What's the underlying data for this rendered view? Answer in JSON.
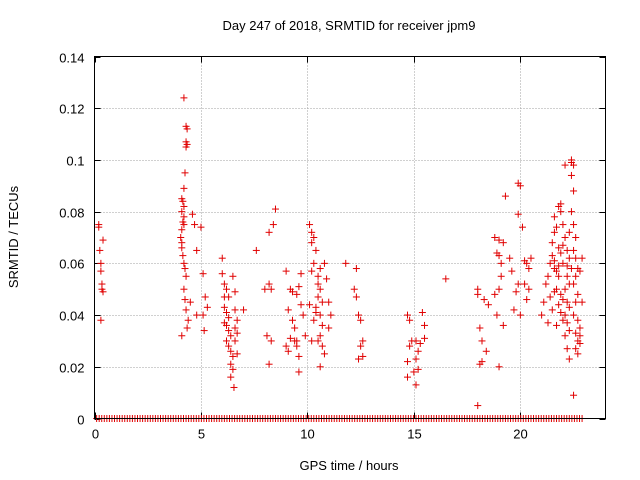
{
  "chart_data": {
    "type": "scatter",
    "title": "Day 247 of 2018, SRMTID for receiver jpm9",
    "xlabel": "GPS time / hours",
    "ylabel": "SRMTID / TECUs",
    "xlim": [
      0,
      24
    ],
    "ylim": [
      0,
      0.14
    ],
    "xticks": [
      0,
      5,
      10,
      15,
      20
    ],
    "xtick_labels": [
      "0",
      "5",
      "10",
      "15",
      "20"
    ],
    "yticks": [
      0,
      0.02,
      0.04,
      0.06,
      0.08,
      0.1,
      0.12,
      0.14
    ],
    "ytick_labels": [
      "0",
      "0.02",
      "0.04",
      "0.06",
      "0.08",
      "0.1",
      "0.12",
      "0.14"
    ],
    "grid": true,
    "marker": "plus",
    "color": "#e00000",
    "series": [
      {
        "name": "SRMTID",
        "points": [
          [
            0.2,
            0.074
          ],
          [
            0.25,
            0.065
          ],
          [
            0.3,
            0.06
          ],
          [
            0.3,
            0.057
          ],
          [
            0.35,
            0.052
          ],
          [
            0.35,
            0.05
          ],
          [
            0.4,
            0.049
          ],
          [
            0.4,
            0.069
          ],
          [
            0.3,
            0.038
          ],
          [
            0.2,
            0.075
          ],
          [
            4.2,
            0.124
          ],
          [
            4.3,
            0.113
          ],
          [
            4.35,
            0.112
          ],
          [
            4.3,
            0.107
          ],
          [
            4.35,
            0.106
          ],
          [
            4.3,
            0.105
          ],
          [
            4.25,
            0.095
          ],
          [
            4.2,
            0.089
          ],
          [
            4.1,
            0.085
          ],
          [
            4.15,
            0.084
          ],
          [
            4.2,
            0.082
          ],
          [
            4.1,
            0.08
          ],
          [
            4.2,
            0.078
          ],
          [
            4.15,
            0.076
          ],
          [
            4.2,
            0.075
          ],
          [
            4.1,
            0.073
          ],
          [
            4.05,
            0.07
          ],
          [
            4.1,
            0.068
          ],
          [
            4.1,
            0.066
          ],
          [
            4.15,
            0.063
          ],
          [
            4.2,
            0.06
          ],
          [
            4.25,
            0.058
          ],
          [
            4.3,
            0.055
          ],
          [
            4.2,
            0.05
          ],
          [
            4.25,
            0.046
          ],
          [
            4.3,
            0.042
          ],
          [
            4.4,
            0.038
          ],
          [
            4.35,
            0.035
          ],
          [
            4.1,
            0.032
          ],
          [
            4.5,
            0.045
          ],
          [
            4.6,
            0.079
          ],
          [
            4.7,
            0.075
          ],
          [
            5.0,
            0.074
          ],
          [
            4.8,
            0.065
          ],
          [
            5.1,
            0.056
          ],
          [
            5.2,
            0.047
          ],
          [
            5.3,
            0.043
          ],
          [
            5.1,
            0.04
          ],
          [
            5.15,
            0.034
          ],
          [
            4.8,
            0.04
          ],
          [
            6.0,
            0.062
          ],
          [
            6.0,
            0.056
          ],
          [
            6.1,
            0.052
          ],
          [
            6.2,
            0.05
          ],
          [
            6.3,
            0.047
          ],
          [
            6.1,
            0.043
          ],
          [
            6.2,
            0.041
          ],
          [
            6.3,
            0.039
          ],
          [
            6.1,
            0.037
          ],
          [
            6.2,
            0.036
          ],
          [
            6.3,
            0.034
          ],
          [
            6.4,
            0.032
          ],
          [
            6.2,
            0.03
          ],
          [
            6.3,
            0.028
          ],
          [
            6.4,
            0.026
          ],
          [
            6.5,
            0.024
          ],
          [
            6.4,
            0.021
          ],
          [
            6.5,
            0.019
          ],
          [
            6.4,
            0.016
          ],
          [
            6.55,
            0.012
          ],
          [
            6.6,
            0.042
          ],
          [
            6.7,
            0.038
          ],
          [
            6.6,
            0.035
          ],
          [
            6.7,
            0.033
          ],
          [
            6.6,
            0.049
          ],
          [
            6.5,
            0.055
          ],
          [
            6.6,
            0.03
          ],
          [
            6.7,
            0.025
          ],
          [
            7.0,
            0.042
          ],
          [
            6.1,
            0.047
          ],
          [
            7.6,
            0.065
          ],
          [
            8.2,
            0.072
          ],
          [
            8.4,
            0.075
          ],
          [
            8.5,
            0.081
          ],
          [
            8.2,
            0.052
          ],
          [
            8.3,
            0.05
          ],
          [
            8.0,
            0.05
          ],
          [
            8.1,
            0.032
          ],
          [
            8.3,
            0.03
          ],
          [
            8.2,
            0.021
          ],
          [
            9.0,
            0.057
          ],
          [
            9.2,
            0.05
          ],
          [
            9.3,
            0.049
          ],
          [
            9.1,
            0.042
          ],
          [
            9.3,
            0.038
          ],
          [
            9.4,
            0.035
          ],
          [
            9.2,
            0.031
          ],
          [
            9.0,
            0.028
          ],
          [
            9.5,
            0.028
          ],
          [
            9.6,
            0.024
          ],
          [
            9.6,
            0.018
          ],
          [
            9.5,
            0.048
          ],
          [
            9.7,
            0.056
          ],
          [
            9.6,
            0.051
          ],
          [
            9.8,
            0.04
          ],
          [
            9.9,
            0.032
          ],
          [
            9.7,
            0.044
          ],
          [
            9.5,
            0.03
          ],
          [
            9.1,
            0.026
          ],
          [
            9.4,
            0.03
          ],
          [
            10.1,
            0.075
          ],
          [
            10.2,
            0.072
          ],
          [
            10.3,
            0.07
          ],
          [
            10.2,
            0.068
          ],
          [
            10.4,
            0.065
          ],
          [
            10.3,
            0.06
          ],
          [
            10.5,
            0.055
          ],
          [
            10.6,
            0.05
          ],
          [
            10.5,
            0.047
          ],
          [
            10.4,
            0.043
          ],
          [
            10.6,
            0.04
          ],
          [
            10.7,
            0.036
          ],
          [
            10.6,
            0.032
          ],
          [
            10.5,
            0.03
          ],
          [
            10.7,
            0.028
          ],
          [
            10.8,
            0.025
          ],
          [
            10.6,
            0.02
          ],
          [
            10.2,
            0.057
          ],
          [
            10.8,
            0.06
          ],
          [
            10.9,
            0.054
          ],
          [
            10.3,
            0.038
          ],
          [
            10.1,
            0.044
          ],
          [
            10.2,
            0.03
          ],
          [
            10.4,
            0.041
          ],
          [
            10.7,
            0.045
          ],
          [
            11.0,
            0.045
          ],
          [
            11.1,
            0.04
          ],
          [
            11.0,
            0.035
          ],
          [
            10.5,
            0.052
          ],
          [
            10.6,
            0.058
          ],
          [
            11.8,
            0.06
          ],
          [
            12.2,
            0.05
          ],
          [
            12.3,
            0.058
          ],
          [
            12.3,
            0.047
          ],
          [
            12.4,
            0.04
          ],
          [
            12.5,
            0.038
          ],
          [
            12.6,
            0.03
          ],
          [
            12.5,
            0.028
          ],
          [
            12.6,
            0.024
          ],
          [
            12.4,
            0.023
          ],
          [
            14.7,
            0.04
          ],
          [
            14.8,
            0.038
          ],
          [
            14.9,
            0.03
          ],
          [
            14.8,
            0.028
          ],
          [
            14.7,
            0.022
          ],
          [
            14.7,
            0.016
          ],
          [
            15.1,
            0.03
          ],
          [
            15.2,
            0.026
          ],
          [
            15.1,
            0.023
          ],
          [
            15.2,
            0.019
          ],
          [
            15.1,
            0.013
          ],
          [
            15.0,
            0.018
          ],
          [
            15.5,
            0.036
          ],
          [
            15.4,
            0.041
          ],
          [
            15.3,
            0.029
          ],
          [
            15.5,
            0.031
          ],
          [
            16.5,
            0.054
          ],
          [
            18.0,
            0.05
          ],
          [
            18.0,
            0.048
          ],
          [
            18.1,
            0.035
          ],
          [
            18.2,
            0.03
          ],
          [
            18.1,
            0.021
          ],
          [
            18.2,
            0.022
          ],
          [
            18.4,
            0.026
          ],
          [
            18.0,
            0.005
          ],
          [
            18.3,
            0.046
          ],
          [
            18.5,
            0.044
          ],
          [
            18.8,
            0.07
          ],
          [
            19.0,
            0.069
          ],
          [
            19.0,
            0.063
          ],
          [
            19.1,
            0.06
          ],
          [
            19.1,
            0.055
          ],
          [
            19.0,
            0.05
          ],
          [
            18.8,
            0.048
          ],
          [
            18.9,
            0.04
          ],
          [
            19.2,
            0.036
          ],
          [
            19.0,
            0.02
          ],
          [
            18.9,
            0.064
          ],
          [
            19.3,
            0.086
          ],
          [
            19.2,
            0.068
          ],
          [
            19.5,
            0.062
          ],
          [
            19.6,
            0.057
          ],
          [
            19.8,
            0.049
          ],
          [
            19.7,
            0.042
          ],
          [
            19.9,
            0.052
          ],
          [
            20.0,
            0.04
          ],
          [
            19.9,
            0.091
          ],
          [
            20.0,
            0.09
          ],
          [
            19.9,
            0.079
          ],
          [
            20.1,
            0.074
          ],
          [
            20.2,
            0.061
          ],
          [
            20.3,
            0.06
          ],
          [
            20.4,
            0.058
          ],
          [
            20.3,
            0.046
          ],
          [
            20.5,
            0.062
          ],
          [
            20.4,
            0.05
          ],
          [
            20.2,
            0.052
          ],
          [
            21.0,
            0.04
          ],
          [
            21.1,
            0.045
          ],
          [
            21.2,
            0.052
          ],
          [
            21.3,
            0.055
          ],
          [
            21.4,
            0.06
          ],
          [
            21.5,
            0.063
          ],
          [
            21.6,
            0.058
          ],
          [
            21.5,
            0.068
          ],
          [
            21.6,
            0.072
          ],
          [
            21.7,
            0.074
          ],
          [
            21.6,
            0.078
          ],
          [
            21.8,
            0.082
          ],
          [
            21.9,
            0.083
          ],
          [
            22.0,
            0.075
          ],
          [
            21.8,
            0.066
          ],
          [
            21.9,
            0.064
          ],
          [
            22.0,
            0.06
          ],
          [
            21.7,
            0.057
          ],
          [
            21.8,
            0.055
          ],
          [
            21.7,
            0.05
          ],
          [
            21.9,
            0.048
          ],
          [
            22.0,
            0.046
          ],
          [
            21.8,
            0.044
          ],
          [
            21.9,
            0.041
          ],
          [
            22.0,
            0.038
          ],
          [
            21.7,
            0.036
          ],
          [
            21.5,
            0.042
          ],
          [
            21.4,
            0.047
          ],
          [
            21.3,
            0.037
          ],
          [
            21.6,
            0.049
          ],
          [
            22.1,
            0.07
          ],
          [
            22.2,
            0.065
          ],
          [
            22.3,
            0.062
          ],
          [
            22.4,
            0.058
          ],
          [
            22.2,
            0.055
          ],
          [
            22.3,
            0.052
          ],
          [
            22.1,
            0.05
          ],
          [
            22.2,
            0.045
          ],
          [
            22.3,
            0.043
          ],
          [
            22.1,
            0.04
          ],
          [
            22.2,
            0.037
          ],
          [
            22.3,
            0.034
          ],
          [
            22.1,
            0.032
          ],
          [
            22.2,
            0.027
          ],
          [
            22.3,
            0.023
          ],
          [
            22.4,
            0.099
          ],
          [
            22.4,
            0.1
          ],
          [
            22.5,
            0.098
          ],
          [
            22.4,
            0.094
          ],
          [
            22.5,
            0.088
          ],
          [
            22.4,
            0.08
          ],
          [
            22.5,
            0.075
          ],
          [
            22.6,
            0.07
          ],
          [
            22.5,
            0.065
          ],
          [
            22.6,
            0.062
          ],
          [
            22.7,
            0.058
          ],
          [
            22.6,
            0.055
          ],
          [
            22.5,
            0.052
          ],
          [
            22.7,
            0.048
          ],
          [
            22.6,
            0.045
          ],
          [
            22.5,
            0.04
          ],
          [
            22.7,
            0.038
          ],
          [
            22.8,
            0.035
          ],
          [
            22.6,
            0.033
          ],
          [
            22.7,
            0.03
          ],
          [
            22.8,
            0.029
          ],
          [
            22.6,
            0.027
          ],
          [
            22.7,
            0.025
          ],
          [
            22.8,
            0.032
          ],
          [
            22.9,
            0.045
          ],
          [
            22.9,
            0.062
          ],
          [
            22.8,
            0.057
          ],
          [
            22.5,
            0.009
          ],
          [
            22.1,
            0.098
          ],
          [
            21.9,
            0.08
          ],
          [
            22.0,
            0.067
          ],
          [
            22.2,
            0.059
          ],
          [
            21.6,
            0.061
          ],
          [
            21.8,
            0.059
          ],
          [
            22.3,
            0.072
          ]
        ],
        "zero_band": {
          "y": 0,
          "x_from": 0.1,
          "x_to": 22.9,
          "x_step": 0.12
        }
      }
    ]
  }
}
